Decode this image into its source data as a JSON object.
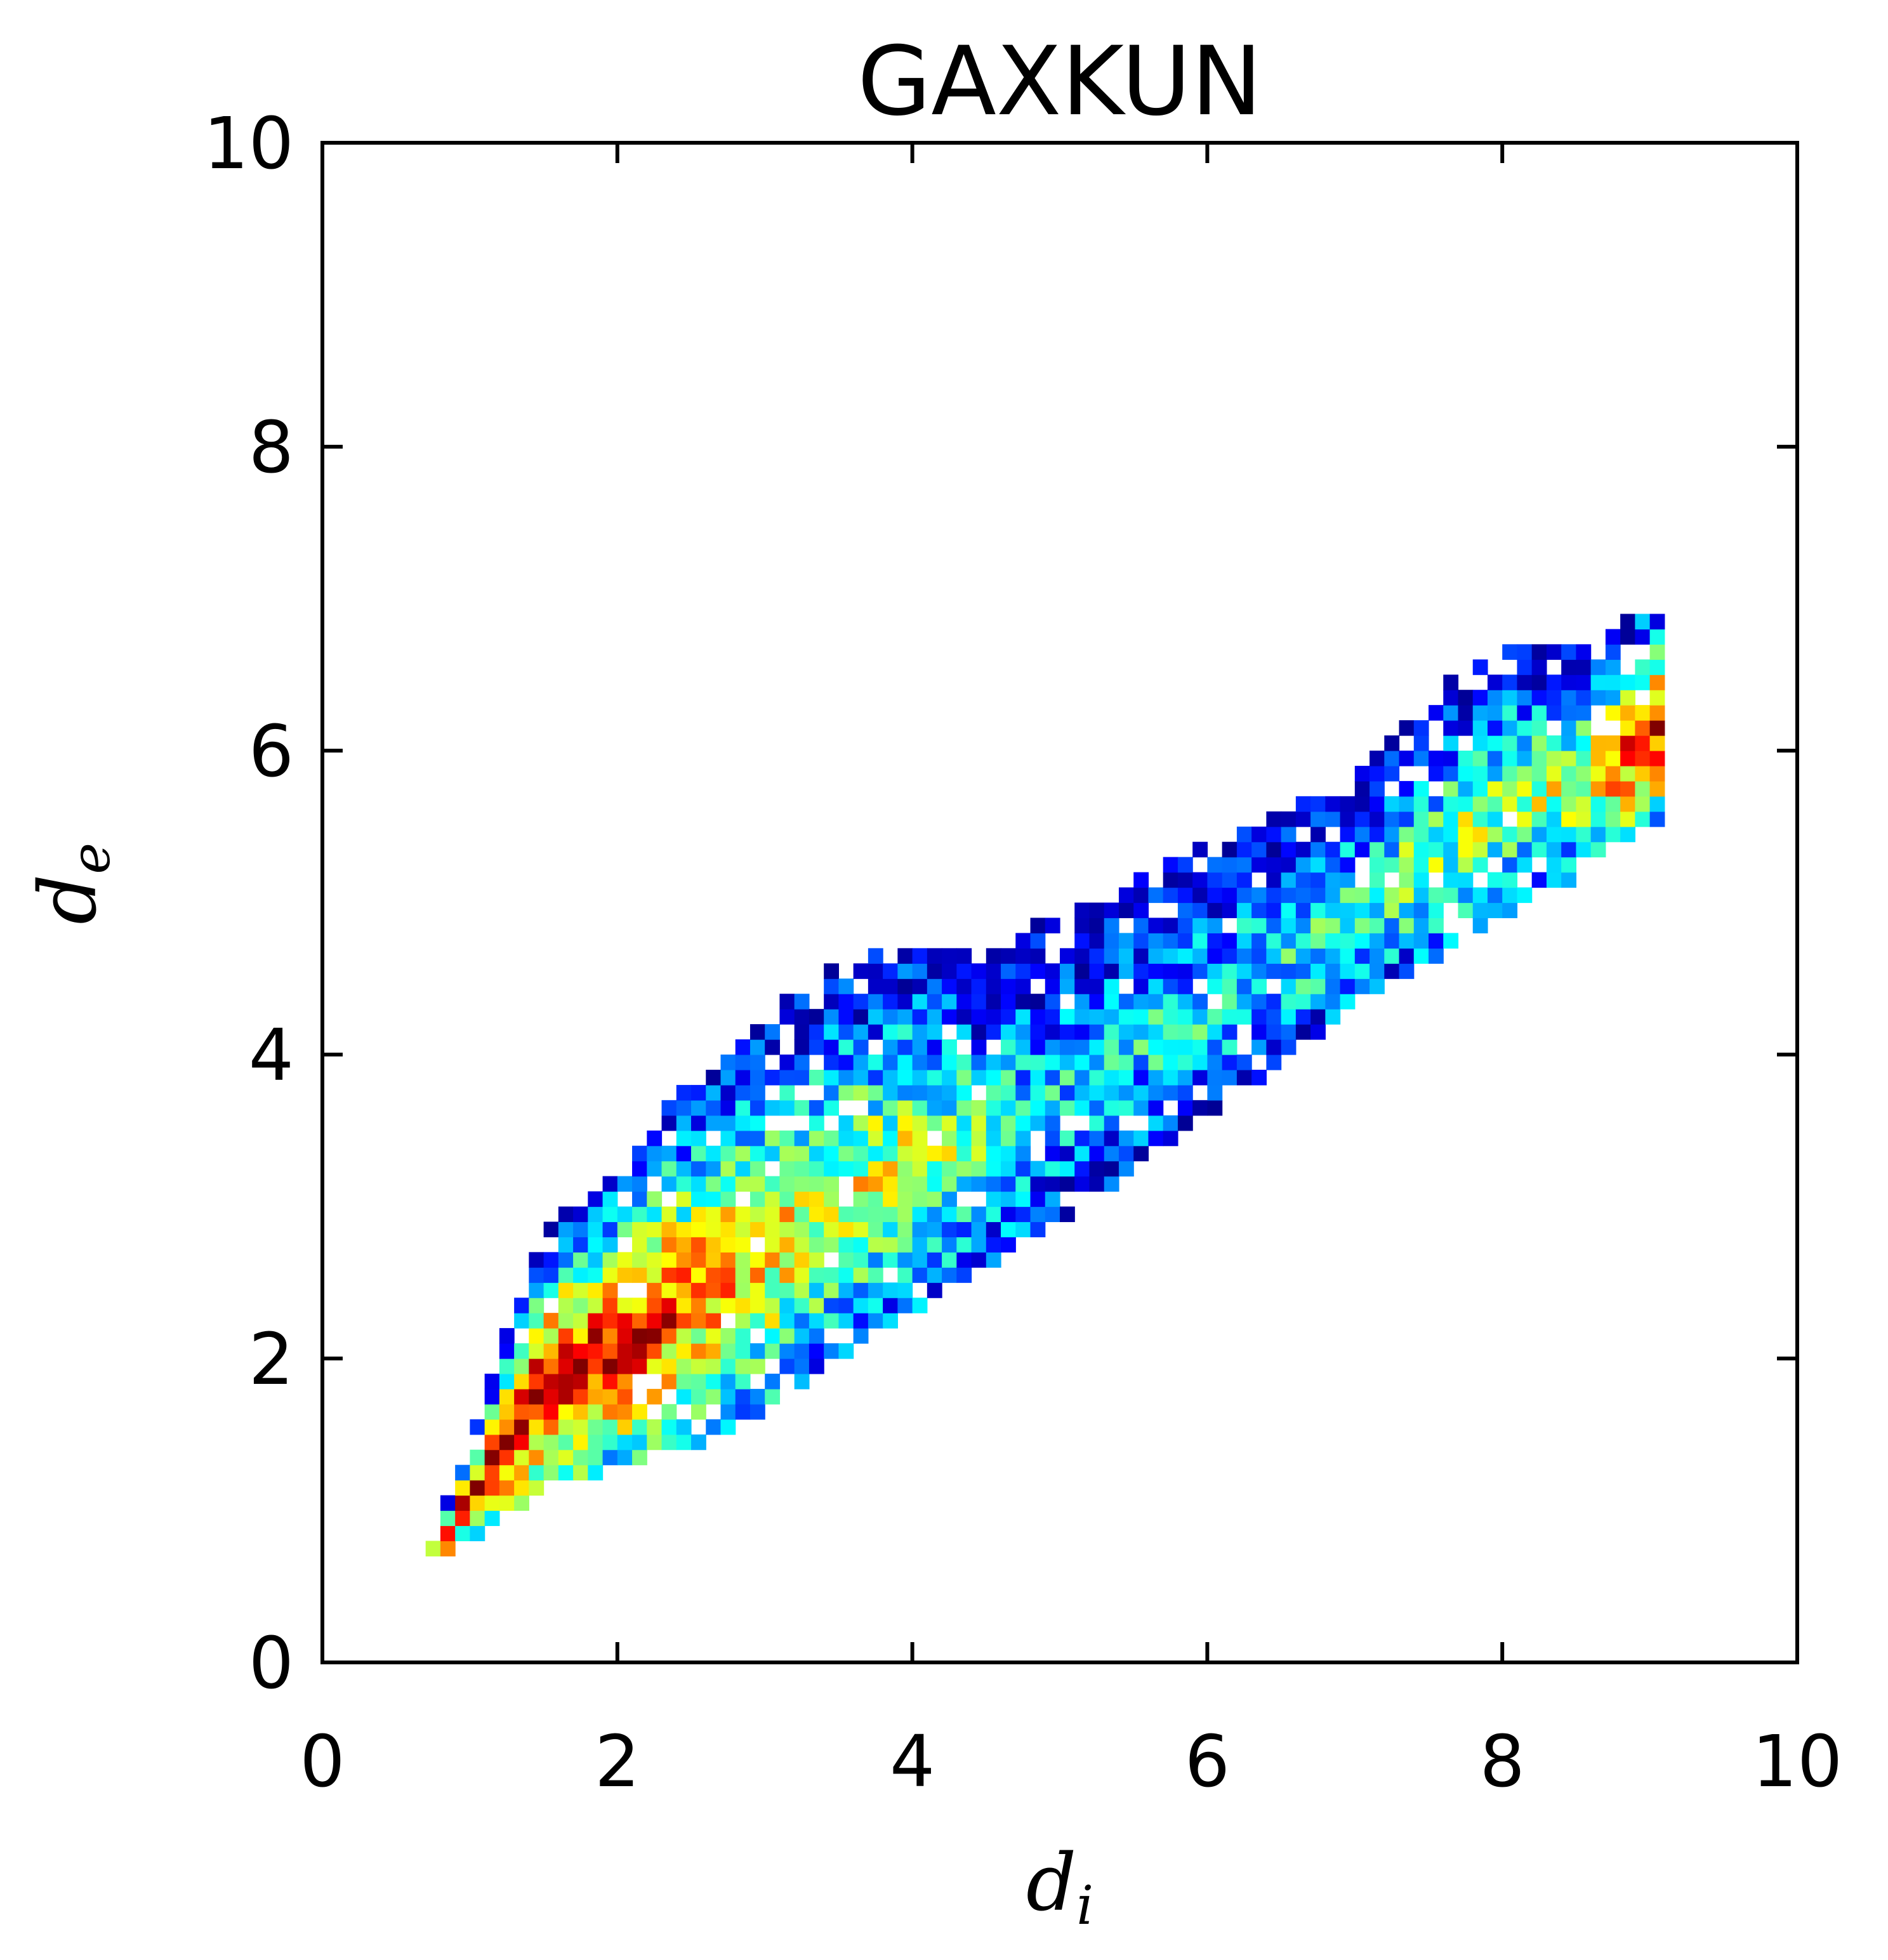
{
  "chart_data": {
    "type": "heatmap",
    "title": "GAXKUN",
    "xlabel": {
      "base": "d",
      "sub": "i"
    },
    "ylabel": {
      "base": "d",
      "sub": "e"
    },
    "xlim": [
      0,
      10
    ],
    "ylim": [
      0,
      10
    ],
    "x_ticks": [
      "0",
      "2",
      "4",
      "6",
      "8",
      "10"
    ],
    "y_ticks": [
      "0",
      "2",
      "4",
      "6",
      "8",
      "10"
    ],
    "grid": false,
    "colormap": "jet",
    "bin_size": 0.1,
    "density_ridge": {
      "description_points_di": [
        0.7,
        1.0,
        1.5,
        2.0,
        2.5,
        3.0,
        3.5,
        4.0,
        4.5,
        5.0,
        5.5,
        6.0,
        6.5,
        7.0,
        7.5,
        8.0,
        8.5,
        8.8,
        9.0
      ],
      "lower_de": [
        0.55,
        0.85,
        1.15,
        1.35,
        1.45,
        1.7,
        2.05,
        2.35,
        2.65,
        2.95,
        3.3,
        3.65,
        4.0,
        4.35,
        4.65,
        4.95,
        5.2,
        5.4,
        5.55
      ],
      "upper_de": [
        0.65,
        1.4,
        2.8,
        3.2,
        3.8,
        4.2,
        4.55,
        4.7,
        4.6,
        4.9,
        5.1,
        5.35,
        5.55,
        5.75,
        6.3,
        6.7,
        6.6,
        6.8,
        7.0
      ],
      "peak_density": [
        0.9,
        1.0,
        1.0,
        0.95,
        0.8,
        0.7,
        0.6,
        0.6,
        0.45,
        0.35,
        0.35,
        0.4,
        0.4,
        0.5,
        0.5,
        0.55,
        0.6,
        0.85,
        0.9
      ]
    },
    "colors": {
      "jet_low": "#00007f",
      "jet_high": "#7f0000"
    }
  }
}
